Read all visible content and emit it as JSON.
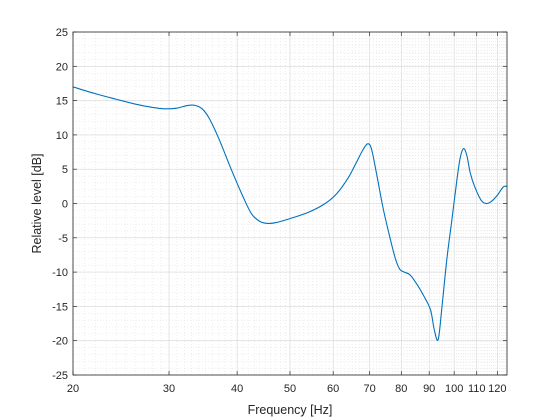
{
  "chart_data": {
    "type": "line",
    "title": "",
    "xlabel": "Frequency [Hz]",
    "ylabel": "Relative level [dB]",
    "xscale": "log",
    "xlim": [
      20,
      125
    ],
    "ylim": [
      -25,
      25
    ],
    "grid": true,
    "minor_grid": true,
    "line_color": "#0072BD",
    "x_ticks": [
      20,
      30,
      40,
      50,
      60,
      70,
      80,
      90,
      100,
      110,
      120
    ],
    "x_tick_labels": [
      "20",
      "30",
      "40",
      "50",
      "60",
      "70",
      "80",
      "90",
      "100",
      "110",
      "120"
    ],
    "y_ticks": [
      -25,
      -20,
      -15,
      -10,
      -5,
      0,
      5,
      10,
      15,
      20,
      25
    ],
    "y_tick_labels": [
      "-25",
      "-20",
      "-15",
      "-10",
      "-5",
      "0",
      "5",
      "10",
      "15",
      "20",
      "25"
    ],
    "series": [
      {
        "x": [
          20,
          22,
          24,
          26,
          28,
          29.5,
          31,
          32.5,
          33.5,
          34.5,
          35.5,
          37,
          39,
          41,
          42.5,
          44,
          45.5,
          47,
          50,
          54,
          58,
          61,
          64,
          66,
          68,
          69.4,
          70.5,
          72,
          74,
          76,
          78,
          79.5,
          81,
          83,
          85.5,
          88,
          90.5,
          92,
          93.5,
          95,
          97,
          99,
          101,
          102.5,
          104,
          105.5,
          107,
          109,
          112,
          114.5,
          117,
          120,
          123,
          125
        ],
        "y": [
          17,
          16,
          15.2,
          14.5,
          14,
          13.8,
          13.9,
          14.3,
          14.3,
          13.8,
          12.5,
          9.5,
          5,
          1,
          -1.5,
          -2.6,
          -2.9,
          -2.8,
          -2.2,
          -1.3,
          0,
          1.5,
          3.8,
          5.8,
          7.8,
          8.7,
          8,
          4.5,
          -0.5,
          -4.5,
          -8,
          -9.6,
          -10,
          -10.4,
          -11.8,
          -13.5,
          -15.5,
          -18.5,
          -19.8,
          -15,
          -8,
          -2.5,
          3,
          6.5,
          8,
          7,
          4.5,
          2.5,
          0.5,
          0,
          0.3,
          1.2,
          2.4,
          2.5
        ]
      }
    ]
  }
}
